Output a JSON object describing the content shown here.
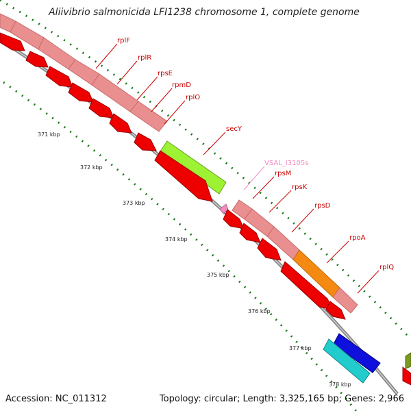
{
  "title": "Aliivibrio salmonicida LFI1238 chromosome 1, complete genome",
  "accession_text": "Accession: NC_011312",
  "summary_text": "Topology: circular; Length: 3,325,165 bp; Genes: 2,966",
  "tick_labels": [
    "371 kbp",
    "372 kbp",
    "373 kbp",
    "374 kbp",
    "375 kbp",
    "376 kbp",
    "377 kbp",
    "378 kbp"
  ],
  "genes": [
    {
      "name": "rplF",
      "color": "#cc0000"
    },
    {
      "name": "rplR",
      "color": "#cc0000"
    },
    {
      "name": "rpsE",
      "color": "#cc0000"
    },
    {
      "name": "rpmD",
      "color": "#cc0000"
    },
    {
      "name": "rplO",
      "color": "#cc0000"
    },
    {
      "name": "secY",
      "color": "#cc0000"
    },
    {
      "name": "VSAL_I3105s",
      "color": "#f08cc0"
    },
    {
      "name": "rpsM",
      "color": "#cc0000"
    },
    {
      "name": "rpsK",
      "color": "#cc0000"
    },
    {
      "name": "rpsD",
      "color": "#cc0000"
    },
    {
      "name": "rpoA",
      "color": "#cc0000"
    },
    {
      "name": "rplQ",
      "color": "#cc0000"
    }
  ],
  "colors": {
    "backbone": "#8c8c8c",
    "gene_red": "#ee0000",
    "gene_pink": "#e98f8f",
    "secY_green": "#9df233",
    "rpoA_orange": "#f48a12",
    "blue": "#1010dd",
    "cyan": "#22cccc",
    "olive": "#7a9a20",
    "tick_green": "#1a7a1a"
  }
}
